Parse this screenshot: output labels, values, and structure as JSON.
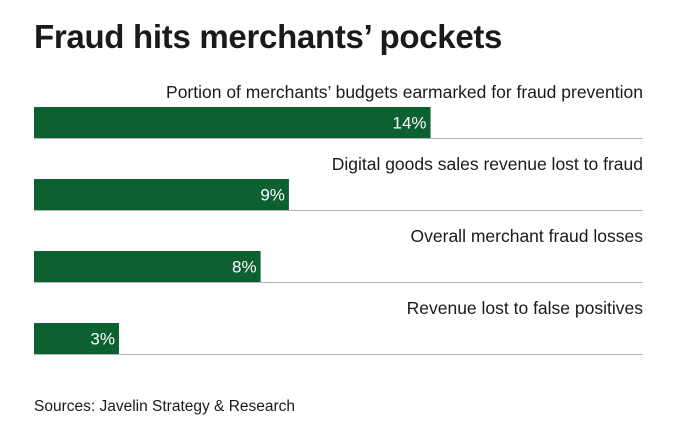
{
  "chart_data": {
    "type": "bar",
    "orientation": "horizontal",
    "title": "Fraud hits merchants’ pockets",
    "categories": [
      "Portion of merchants’ budgets earmarked for fraud prevention",
      "Digital goods sales revenue lost to fraud",
      "Overall merchant fraud losses",
      "Revenue lost to false positives"
    ],
    "values": [
      14,
      9,
      8,
      3
    ],
    "value_labels": [
      "14%",
      "9%",
      "8%",
      "3%"
    ],
    "unit": "%",
    "xlim": [
      0,
      21.5
    ],
    "grid": false,
    "legend": "none",
    "source": "Sources: Javelin Strategy & Research"
  },
  "colors": {
    "bar": "#0d6131",
    "bar_label": "#ffffff",
    "divider": "#b5b5b5",
    "text": "#1a1a1a"
  }
}
